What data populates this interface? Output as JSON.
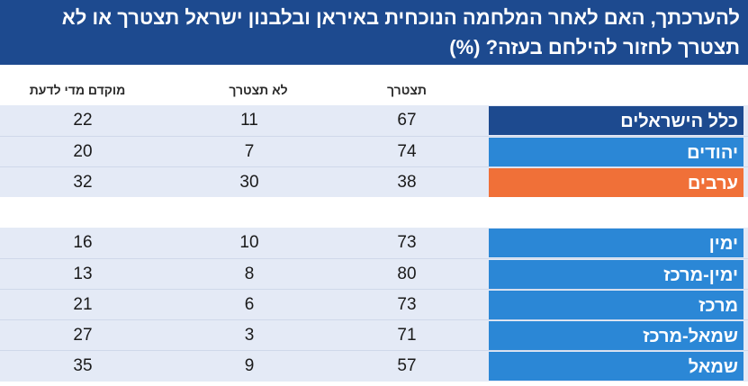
{
  "chart_data": {
    "type": "table",
    "title": "להערכתך, האם לאחר המלחמה הנוכחית באיראן ובלבנון ישראל תצטרך או לא תצטרך לחזור להילחם בעזה? (%)",
    "columns": [
      "תצטרך",
      "לא תצטרך",
      "מוקדם מדי לדעת"
    ],
    "groups": [
      {
        "rows": [
          {
            "label": "כלל הישראלים",
            "values": [
              67,
              11,
              22
            ],
            "color": "#1d4a8f"
          },
          {
            "label": "יהודים",
            "values": [
              74,
              7,
              20
            ],
            "color": "#2b87d6"
          },
          {
            "label": "ערבים",
            "values": [
              38,
              30,
              32
            ],
            "color": "#f07038"
          }
        ]
      },
      {
        "rows": [
          {
            "label": "ימין",
            "values": [
              73,
              10,
              16
            ],
            "color": "#2b87d6"
          },
          {
            "label": "ימין-מרכז",
            "values": [
              80,
              8,
              13
            ],
            "color": "#2b87d6"
          },
          {
            "label": "מרכז",
            "values": [
              73,
              6,
              21
            ],
            "color": "#2b87d6"
          },
          {
            "label": "שמאל-מרכז",
            "values": [
              71,
              3,
              27
            ],
            "color": "#2b87d6"
          },
          {
            "label": "שמאל",
            "values": [
              57,
              9,
              35
            ],
            "color": "#2b87d6"
          }
        ]
      }
    ]
  }
}
